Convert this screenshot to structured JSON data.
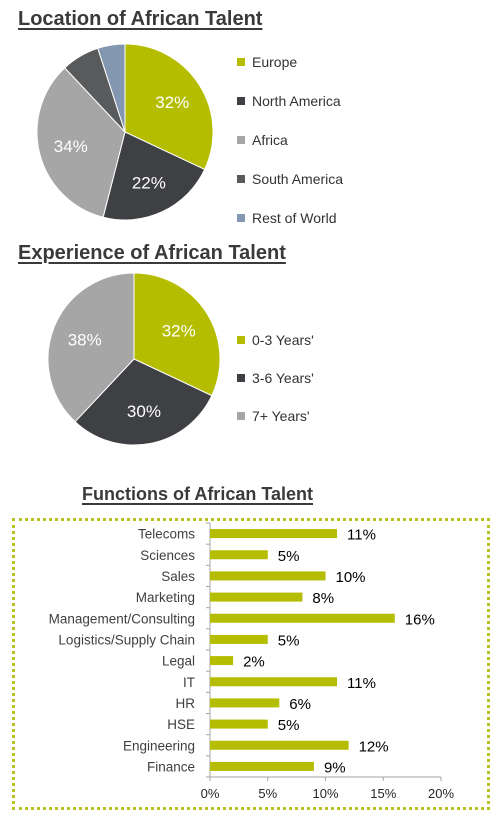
{
  "charts_meta": {
    "location_title": "Location of African Talent",
    "experience_title": "Experience of African Talent",
    "functions_title": "Functions of African Talent"
  },
  "chart_data": [
    {
      "type": "pie",
      "title": "Location of African Talent",
      "slices": [
        {
          "label": "Europe",
          "value": 32,
          "color": "#b5bd00",
          "data_label": "32%"
        },
        {
          "label": "North America",
          "value": 22,
          "color": "#3f4043",
          "data_label": "22%"
        },
        {
          "label": "Africa",
          "value": 34,
          "color": "#a6a6a6",
          "data_label": "34%"
        },
        {
          "label": "South America",
          "value": 7,
          "color": "#595a5c",
          "data_label": ""
        },
        {
          "label": "Rest of World",
          "value": 5,
          "color": "#8497b0",
          "data_label": ""
        }
      ],
      "legend_position": "right"
    },
    {
      "type": "pie",
      "title": "Experience of African Talent",
      "slices": [
        {
          "label": "0-3 Years'",
          "value": 32,
          "color": "#b5bd00",
          "data_label": "32%"
        },
        {
          "label": "3-6 Years'",
          "value": 30,
          "color": "#3f4043",
          "data_label": "30%"
        },
        {
          "label": "7+ Years'",
          "value": 38,
          "color": "#a6a6a6",
          "data_label": "38%"
        }
      ],
      "legend_position": "right"
    },
    {
      "type": "bar",
      "orientation": "horizontal",
      "title": "Functions of African Talent",
      "categories": [
        "Telecoms",
        "Sciences",
        "Sales",
        "Marketing",
        "Management/Consulting",
        "Logistics/Supply Chain",
        "Legal",
        "IT",
        "HR",
        "HSE",
        "Engineering",
        "Finance"
      ],
      "values": [
        11,
        5,
        10,
        8,
        16,
        5,
        2,
        11,
        6,
        5,
        12,
        9
      ],
      "data_labels": [
        "11%",
        "5%",
        "10%",
        "8%",
        "16%",
        "5%",
        "2%",
        "11%",
        "6%",
        "5%",
        "12%",
        "9%"
      ],
      "xlim": [
        0,
        20
      ],
      "xticks": [
        0,
        5,
        10,
        15,
        20
      ],
      "xtick_labels": [
        "0%",
        "5%",
        "10%",
        "15%",
        "20%"
      ],
      "bar_color": "#b5bd00",
      "grid": false,
      "frame_color": "#b9c21e"
    }
  ]
}
